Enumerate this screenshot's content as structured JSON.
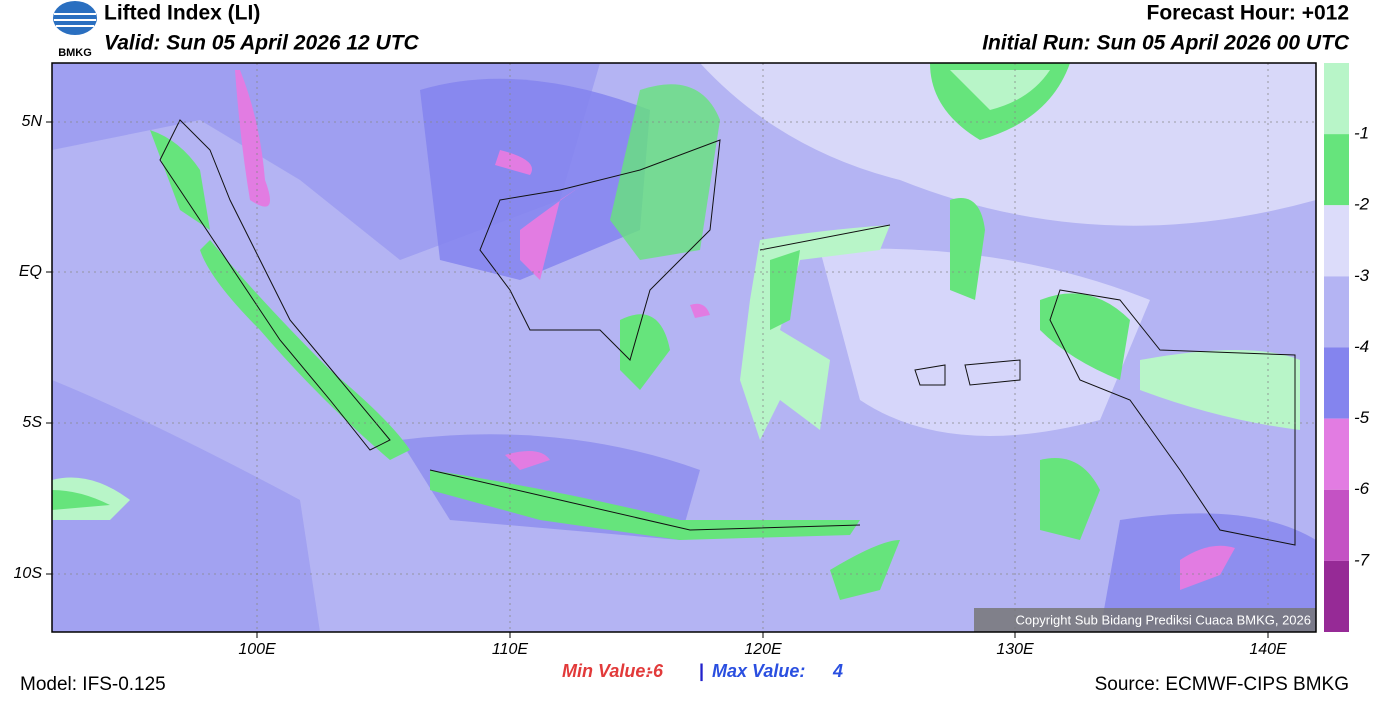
{
  "header": {
    "logo": "BMKG",
    "title": "Lifted Index (LI)",
    "valid": "Valid: Sun 05 April 2026 12 UTC",
    "forecast_hour": "Forecast Hour: +012",
    "initial_run": "Initial Run: Sun 05 April 2026 00 UTC"
  },
  "map": {
    "lat_labels": [
      "5N",
      "EQ",
      "5S",
      "10S"
    ],
    "lon_labels": [
      "100E",
      "110E",
      "120E",
      "130E",
      "140E"
    ],
    "copyright": "Copyright Sub Bidang Prediksi Cuaca BMKG, 2026"
  },
  "colorbar": {
    "ticks": [
      -1,
      -2,
      -3,
      -4,
      -5,
      -6,
      -7
    ],
    "colors": [
      "#b8f5c8",
      "#66e47c",
      "#dcdcfa",
      "#b4b4f3",
      "#8484ee",
      "#e27ce2",
      "#c452c4",
      "#962a96"
    ]
  },
  "footer": {
    "model": "Model: IFS-0.125",
    "min_label": "Min Value:",
    "min_value": -6,
    "separator": "|",
    "max_label": "Max Value:",
    "max_value": 4,
    "source": "Source: ECMWF-CIPS BMKG"
  }
}
